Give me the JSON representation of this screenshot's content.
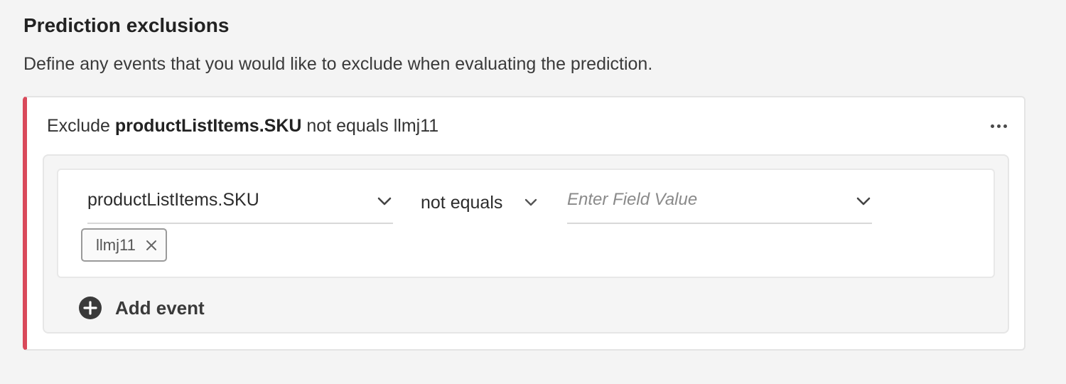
{
  "section": {
    "title": "Prediction exclusions",
    "description": "Define any events that you would like to exclude when evaluating the prediction."
  },
  "exclusion": {
    "title_prefix": "Exclude",
    "title_field": "productListItems.SKU",
    "title_suffix": "not equals llmj11",
    "accent_color": "#d9495a",
    "more_icon": "more-horizontal-icon",
    "rule": {
      "field": "productListItems.SKU",
      "operator": "not equals",
      "value_placeholder": "Enter Field Value",
      "value_current": "",
      "tags": [
        {
          "label": "llmj11",
          "remove_icon": "close-icon"
        }
      ]
    },
    "add_event_label": "Add event",
    "add_event_icon": "plus-circle-icon"
  }
}
